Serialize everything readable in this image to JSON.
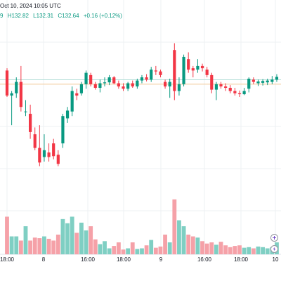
{
  "header": {
    "datetime": "Oct 10, 2024 10:05 UTC",
    "values": [
      "9",
      "H132.82",
      "L132.31",
      "C132.64",
      "+0.16 (+0.12%)"
    ]
  },
  "colors": {
    "up": "#089981",
    "down": "#f23645",
    "up_volume": "#7fcfc3",
    "down_volume": "#f5a1a8",
    "grid": "#eef0f3",
    "price_line": "#f7c58a",
    "ref_line": "#9fd6cd"
  },
  "time_axis": [
    "18:00",
    "8",
    "16:00",
    "18:00",
    "9",
    "16:00",
    "18:00",
    "10"
  ],
  "controls": {
    "plus_icon": "plus-circle-icon",
    "lightning_icon": "lightning-icon"
  },
  "chart_data": {
    "type": "candlestick",
    "price_lines": [
      132.5,
      132.4
    ],
    "candles": [
      {
        "o": 132.7,
        "h": 132.75,
        "l": 132.12,
        "c": 132.15
      },
      {
        "o": 132.15,
        "h": 132.25,
        "l": 131.5,
        "c": 132.2
      },
      {
        "o": 132.2,
        "h": 132.55,
        "l": 132.1,
        "c": 132.45
      },
      {
        "o": 132.45,
        "h": 132.8,
        "l": 131.8,
        "c": 131.9
      },
      {
        "o": 131.8,
        "h": 132.05,
        "l": 131.7,
        "c": 131.8
      },
      {
        "o": 131.75,
        "h": 131.95,
        "l": 131.2,
        "c": 131.35
      },
      {
        "o": 131.3,
        "h": 131.45,
        "l": 130.95,
        "c": 131.0
      },
      {
        "o": 131.0,
        "h": 131.5,
        "l": 130.6,
        "c": 130.68
      },
      {
        "o": 130.8,
        "h": 131.3,
        "l": 130.7,
        "c": 130.95
      },
      {
        "o": 130.9,
        "h": 131.1,
        "l": 130.7,
        "c": 130.8
      },
      {
        "o": 131.1,
        "h": 131.2,
        "l": 130.75,
        "c": 130.82
      },
      {
        "o": 130.85,
        "h": 130.95,
        "l": 130.6,
        "c": 130.65
      },
      {
        "o": 131.1,
        "h": 131.75,
        "l": 131.0,
        "c": 131.7
      },
      {
        "o": 131.65,
        "h": 131.9,
        "l": 131.55,
        "c": 131.82
      },
      {
        "o": 131.8,
        "h": 132.35,
        "l": 131.7,
        "c": 132.25
      },
      {
        "o": 132.2,
        "h": 132.3,
        "l": 132.05,
        "c": 132.15
      },
      {
        "o": 132.2,
        "h": 132.45,
        "l": 132.15,
        "c": 132.4
      },
      {
        "o": 132.4,
        "h": 132.7,
        "l": 132.3,
        "c": 132.65
      },
      {
        "o": 132.6,
        "h": 132.65,
        "l": 132.35,
        "c": 132.4
      },
      {
        "o": 132.4,
        "h": 132.45,
        "l": 132.28,
        "c": 132.32
      },
      {
        "o": 132.32,
        "h": 132.5,
        "l": 132.22,
        "c": 132.42
      },
      {
        "o": 132.42,
        "h": 132.55,
        "l": 132.35,
        "c": 132.44
      },
      {
        "o": 132.44,
        "h": 132.6,
        "l": 132.38,
        "c": 132.55
      },
      {
        "o": 132.55,
        "h": 132.58,
        "l": 132.4,
        "c": 132.42
      },
      {
        "o": 132.42,
        "h": 132.48,
        "l": 132.3,
        "c": 132.35
      },
      {
        "o": 132.35,
        "h": 132.42,
        "l": 132.25,
        "c": 132.3
      },
      {
        "o": 132.3,
        "h": 132.45,
        "l": 132.25,
        "c": 132.42
      },
      {
        "o": 132.42,
        "h": 132.48,
        "l": 132.32,
        "c": 132.35
      },
      {
        "o": 132.35,
        "h": 132.52,
        "l": 132.3,
        "c": 132.48
      },
      {
        "o": 132.48,
        "h": 132.6,
        "l": 132.42,
        "c": 132.55
      },
      {
        "o": 132.55,
        "h": 132.62,
        "l": 132.46,
        "c": 132.5
      },
      {
        "o": 132.5,
        "h": 132.78,
        "l": 132.45,
        "c": 132.72
      },
      {
        "o": 132.7,
        "h": 132.8,
        "l": 132.6,
        "c": 132.68
      },
      {
        "o": 132.68,
        "h": 132.72,
        "l": 132.55,
        "c": 132.6
      },
      {
        "o": 132.45,
        "h": 132.5,
        "l": 132.3,
        "c": 132.35
      },
      {
        "o": 132.35,
        "h": 132.52,
        "l": 132.1,
        "c": 132.45
      },
      {
        "o": 133.15,
        "h": 133.3,
        "l": 132.05,
        "c": 132.25
      },
      {
        "o": 132.25,
        "h": 132.55,
        "l": 132.15,
        "c": 132.4
      },
      {
        "o": 132.4,
        "h": 133.05,
        "l": 132.35,
        "c": 133.0
      },
      {
        "o": 132.95,
        "h": 133.1,
        "l": 132.65,
        "c": 132.72
      },
      {
        "o": 132.75,
        "h": 132.8,
        "l": 132.55,
        "c": 132.7
      },
      {
        "o": 132.72,
        "h": 132.95,
        "l": 132.65,
        "c": 132.8
      },
      {
        "o": 132.8,
        "h": 132.85,
        "l": 132.68,
        "c": 132.75
      },
      {
        "o": 132.72,
        "h": 132.78,
        "l": 132.55,
        "c": 132.6
      },
      {
        "o": 132.6,
        "h": 132.65,
        "l": 132.2,
        "c": 132.28
      },
      {
        "o": 132.28,
        "h": 132.45,
        "l": 132.05,
        "c": 132.4
      },
      {
        "o": 132.4,
        "h": 132.45,
        "l": 132.3,
        "c": 132.35
      },
      {
        "o": 132.35,
        "h": 132.42,
        "l": 132.25,
        "c": 132.32
      },
      {
        "o": 132.32,
        "h": 132.38,
        "l": 132.2,
        "c": 132.25
      },
      {
        "o": 132.25,
        "h": 132.32,
        "l": 132.15,
        "c": 132.2
      },
      {
        "o": 132.2,
        "h": 132.26,
        "l": 132.12,
        "c": 132.18
      },
      {
        "o": 132.18,
        "h": 132.32,
        "l": 132.16,
        "c": 132.25
      },
      {
        "o": 132.3,
        "h": 132.55,
        "l": 132.22,
        "c": 132.52
      },
      {
        "o": 132.5,
        "h": 132.55,
        "l": 132.4,
        "c": 132.45
      },
      {
        "o": 132.42,
        "h": 132.5,
        "l": 132.36,
        "c": 132.46
      },
      {
        "o": 132.43,
        "h": 132.51,
        "l": 132.37,
        "c": 132.47
      },
      {
        "o": 132.44,
        "h": 132.52,
        "l": 132.38,
        "c": 132.48
      },
      {
        "o": 132.45,
        "h": 132.58,
        "l": 132.4,
        "c": 132.5
      },
      {
        "o": 132.5,
        "h": 132.62,
        "l": 132.45,
        "c": 132.56
      }
    ],
    "volume": [
      0.63,
      0.3,
      0.3,
      0.23,
      0.47,
      0.23,
      0.28,
      0.27,
      0.3,
      0.26,
      0.23,
      0.33,
      0.59,
      0.52,
      0.63,
      0.36,
      0.53,
      0.4,
      0.47,
      0.25,
      0.17,
      0.22,
      0.1,
      0.14,
      0.2,
      0.08,
      0.1,
      0.2,
      0.09,
      0.1,
      0.15,
      0.24,
      0.11,
      0.13,
      0.33,
      0.2,
      0.92,
      0.57,
      0.47,
      0.33,
      0.3,
      0.28,
      0.22,
      0.18,
      0.2,
      0.16,
      0.21,
      0.15,
      0.12,
      0.14,
      0.15,
      0.11,
      0.12,
      0.1,
      0.13,
      0.12,
      0.1,
      0.12,
      0.2
    ]
  }
}
